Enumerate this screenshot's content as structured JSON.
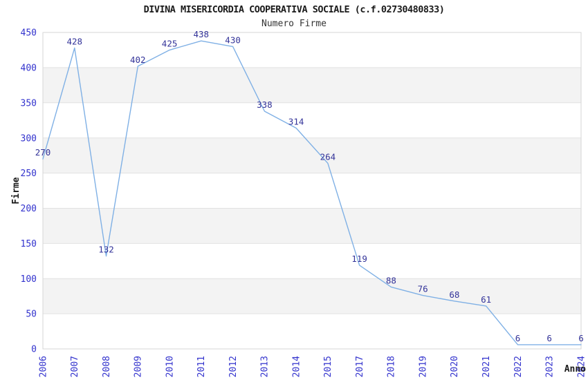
{
  "chart_data": {
    "type": "line",
    "title": "DIVINA MISERICORDIA COOPERATIVA SOCIALE (c.f.02730480833)",
    "subtitle": "Numero Firme",
    "xlabel": "Anno",
    "ylabel": "Firme",
    "categories": [
      "2006",
      "2007",
      "2008",
      "2009",
      "2010",
      "2011",
      "2012",
      "2013",
      "2014",
      "2015",
      "2017",
      "2018",
      "2019",
      "2020",
      "2021",
      "2022",
      "2023",
      "2024"
    ],
    "values": [
      270,
      428,
      132,
      402,
      425,
      438,
      430,
      338,
      314,
      264,
      119,
      88,
      76,
      68,
      61,
      6,
      6,
      6
    ],
    "ylim": [
      0,
      450
    ],
    "ytick_step": 50,
    "ytick_labels": [
      "0",
      "50",
      "100",
      "150",
      "200",
      "250",
      "300",
      "350",
      "400",
      "450"
    ],
    "grid": true,
    "legend_position": "none",
    "band_style": "alternating-horizontal",
    "colors": {
      "line": "#7fb0e5",
      "data_label": "#333399",
      "tick_label": "#3232cd",
      "axis_label": "#1a1a1a",
      "title": "#1a1a1a",
      "subtitle": "#333333",
      "band": "#f3f3f3",
      "gridline": "#e2e2e2",
      "border": "#d6d6d6",
      "background": "#ffffff"
    }
  }
}
